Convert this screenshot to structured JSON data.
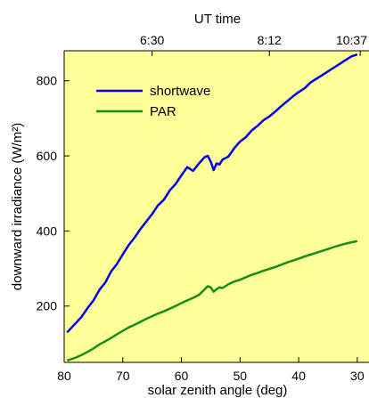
{
  "chart_data": {
    "type": "line",
    "xlabel": "solar zenith angle (deg)",
    "ylabel": "downward  irradiance  (W/m²)",
    "top_axis_title": "UT  time",
    "xlim": [
      80,
      28
    ],
    "ylim": [
      50,
      880
    ],
    "x_ticks": [
      80,
      70,
      60,
      50,
      40,
      30
    ],
    "y_ticks": [
      200,
      400,
      600,
      800
    ],
    "top_ticks": [
      {
        "x": 65,
        "label": "6:30"
      },
      {
        "x": 45,
        "label": "8:12"
      },
      {
        "x": 29.5,
        "label": "10:37"
      }
    ],
    "grid": false,
    "legend_position": "upper-left",
    "background": "#ffff99",
    "series": [
      {
        "name": "shortwave",
        "color": "#0000ee",
        "x": [
          79.5,
          78,
          77,
          76,
          75,
          74,
          73,
          72,
          71,
          70,
          69,
          68,
          67,
          66,
          65,
          64,
          63,
          62,
          61,
          60,
          59,
          58,
          57,
          56,
          55.5,
          55,
          54.5,
          54,
          53.5,
          53,
          52,
          51,
          50,
          49,
          48,
          47,
          46,
          45,
          44,
          43,
          42,
          41,
          40,
          39,
          38,
          37,
          36,
          35,
          34,
          33,
          32,
          31,
          30
        ],
        "y": [
          130,
          155,
          172,
          195,
          215,
          243,
          262,
          292,
          312,
          338,
          362,
          382,
          405,
          425,
          445,
          468,
          483,
          508,
          525,
          548,
          570,
          560,
          580,
          597,
          600,
          585,
          562,
          580,
          577,
          590,
          598,
          620,
          638,
          650,
          668,
          680,
          695,
          705,
          718,
          732,
          745,
          758,
          770,
          780,
          795,
          805,
          815,
          825,
          835,
          845,
          855,
          865,
          870
        ]
      },
      {
        "name": "PAR",
        "color": "#168e16",
        "x": [
          79.5,
          78,
          77,
          76,
          75,
          74,
          73,
          72,
          71,
          70,
          69,
          68,
          67,
          66,
          65,
          64,
          63,
          62,
          61,
          60,
          59,
          58,
          57,
          56,
          55.5,
          55,
          54.5,
          54,
          53.5,
          53,
          52,
          51,
          50,
          49,
          48,
          47,
          46,
          45,
          44,
          43,
          42,
          41,
          40,
          39,
          38,
          37,
          36,
          35,
          34,
          33,
          32,
          31,
          30
        ],
        "y": [
          55,
          63,
          70,
          78,
          87,
          98,
          106,
          115,
          125,
          134,
          143,
          150,
          158,
          166,
          173,
          180,
          186,
          193,
          200,
          208,
          215,
          222,
          230,
          245,
          253,
          250,
          238,
          245,
          250,
          248,
          258,
          265,
          270,
          277,
          283,
          288,
          294,
          299,
          304,
          310,
          316,
          321,
          326,
          332,
          337,
          342,
          347,
          352,
          357,
          362,
          366,
          370,
          373
        ]
      }
    ]
  }
}
